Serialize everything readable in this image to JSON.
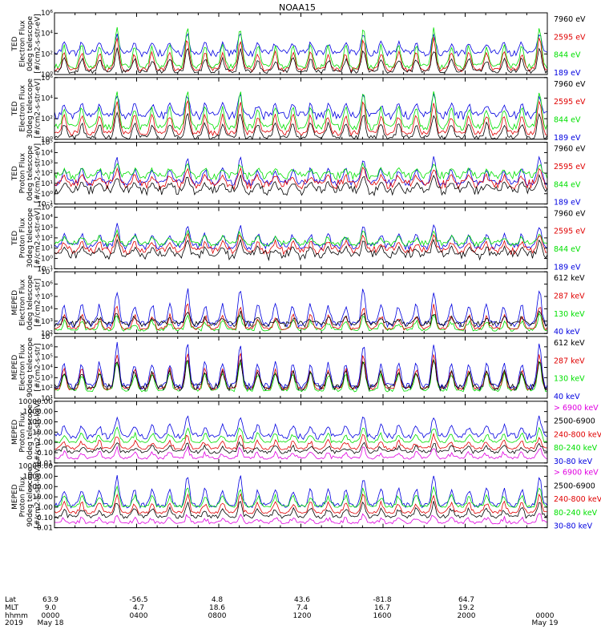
{
  "title": "NOAA15",
  "colors": {
    "black": "#000000",
    "red": "#e00000",
    "green": "#00e000",
    "blue": "#0000e0",
    "magenta": "#e000e0"
  },
  "chart_data": [
    {
      "type": "line",
      "panel_label": "TED Electron Flux 0deg telescope",
      "ylabel": [
        "TED",
        "Electron Flux",
        "0deg telescope",
        "[#/cm2-s-str-eV]"
      ],
      "yscale": "log",
      "ylim": [
        1,
        1000000
      ],
      "yticks": [
        "10⁶",
        "10⁴",
        "10²",
        "10⁰"
      ],
      "legend": [
        {
          "label": "7960 eV",
          "color": "black"
        },
        {
          "label": "2595 eV",
          "color": "red"
        },
        {
          "label": "844 eV",
          "color": "green"
        },
        {
          "label": "189 eV",
          "color": "blue"
        }
      ],
      "series": [
        {
          "color": "blue",
          "base": 120,
          "noise": 2.2,
          "peak": 8000
        },
        {
          "color": "green",
          "base": 6,
          "noise": 1.8,
          "peak": 30000
        },
        {
          "color": "red",
          "base": 3,
          "noise": 1.6,
          "peak": 3000
        },
        {
          "color": "black",
          "base": 2,
          "noise": 1.5,
          "peak": 300
        }
      ]
    },
    {
      "type": "line",
      "panel_label": "TED Electron Flux 30deg telescope",
      "ylabel": [
        "TED",
        "Electron Flux",
        "30deg telescope",
        "[#/cm2-s-str-eV]"
      ],
      "yscale": "log",
      "ylim": [
        1,
        1000000
      ],
      "yticks": [
        "10⁶",
        "10⁴",
        "10²",
        "10⁰"
      ],
      "legend": [
        {
          "label": "7960 eV",
          "color": "black"
        },
        {
          "label": "2595 eV",
          "color": "red"
        },
        {
          "label": "844 eV",
          "color": "green"
        },
        {
          "label": "189 eV",
          "color": "blue"
        }
      ],
      "series": [
        {
          "color": "blue",
          "base": 200,
          "noise": 2.5,
          "peak": 20000
        },
        {
          "color": "green",
          "base": 15,
          "noise": 2.0,
          "peak": 40000
        },
        {
          "color": "red",
          "base": 4,
          "noise": 1.8,
          "peak": 5000
        },
        {
          "color": "black",
          "base": 1.5,
          "noise": 1.6,
          "peak": 400
        }
      ]
    },
    {
      "type": "line",
      "panel_label": "TED Proton Flux 0deg telescope",
      "ylabel": [
        "TED",
        "Proton Flux",
        "0deg telescope",
        "[#/cm2-s-str-eV]"
      ],
      "yscale": "log",
      "ylim": [
        0.1,
        100000
      ],
      "yticks": [
        "10⁵",
        "10⁴",
        "10³",
        "10²",
        "10¹",
        "10⁰",
        "10⁻¹"
      ],
      "legend": [
        {
          "label": "7960 eV",
          "color": "black"
        },
        {
          "label": "2595 eV",
          "color": "red"
        },
        {
          "label": "844 eV",
          "color": "green"
        },
        {
          "label": "189 eV",
          "color": "blue"
        }
      ],
      "series": [
        {
          "color": "blue",
          "base": 12,
          "noise": 2.0,
          "peak": 3000
        },
        {
          "color": "green",
          "base": 60,
          "noise": 2.5,
          "peak": 800
        },
        {
          "color": "red",
          "base": 8,
          "noise": 3.0,
          "peak": 300
        },
        {
          "color": "black",
          "base": 2,
          "noise": 3.0,
          "peak": 60
        }
      ]
    },
    {
      "type": "line",
      "panel_label": "TED Proton Flux 30deg telescope",
      "ylabel": [
        "TED",
        "Proton Flux",
        "30deg telescope",
        "[#/cm2-s-str-eV]"
      ],
      "yscale": "log",
      "ylim": [
        0.1,
        100000
      ],
      "yticks": [
        "10⁵",
        "10⁴",
        "10³",
        "10²",
        "10¹",
        "10⁰",
        "10⁻¹"
      ],
      "legend": [
        {
          "label": "7960 eV",
          "color": "black"
        },
        {
          "label": "2595 eV",
          "color": "red"
        },
        {
          "label": "844 eV",
          "color": "green"
        },
        {
          "label": "189 eV",
          "color": "blue"
        }
      ],
      "series": [
        {
          "color": "blue",
          "base": 15,
          "noise": 2.0,
          "peak": 2000
        },
        {
          "color": "green",
          "base": 30,
          "noise": 2.0,
          "peak": 400
        },
        {
          "color": "red",
          "base": 6,
          "noise": 2.5,
          "peak": 200
        },
        {
          "color": "black",
          "base": 2,
          "noise": 3.0,
          "peak": 50
        }
      ]
    },
    {
      "type": "line",
      "panel_label": "MEPED Electron Flux 0deg telescope",
      "ylabel": [
        "MEPED",
        "Electron Flux",
        "0deg telescope",
        "[#/cm2-s-str]"
      ],
      "yscale": "log",
      "ylim": [
        100,
        10000000
      ],
      "yticks": [
        "10⁷",
        "10⁶",
        "10⁵",
        "10⁴",
        "10³",
        "10²"
      ],
      "legend": [
        {
          "label": "612 keV",
          "color": "black"
        },
        {
          "label": "287 keV",
          "color": "red"
        },
        {
          "label": "130 keV",
          "color": "green"
        },
        {
          "label": "40 keV",
          "color": "blue"
        }
      ],
      "series": [
        {
          "color": "green",
          "base": 200,
          "noise": 1.3,
          "peak": 3000
        },
        {
          "color": "red",
          "base": 250,
          "noise": 1.3,
          "peak": 20000
        },
        {
          "color": "blue",
          "base": 600,
          "noise": 1.8,
          "peak": 400000
        },
        {
          "color": "black",
          "base": 600,
          "noise": 1.7,
          "peak": 5000
        }
      ]
    },
    {
      "type": "line",
      "panel_label": "MEPED Electron Flux 90deg telescope",
      "ylabel": [
        "MEPED",
        "Electron Flux",
        "90deg telescope",
        "[#/cm2-s-str]"
      ],
      "yscale": "log",
      "ylim": [
        10,
        10000000
      ],
      "yticks": [
        "10⁷",
        "10⁶",
        "10⁵",
        "10⁴",
        "10³",
        "10²",
        "10¹"
      ],
      "legend": [
        {
          "label": "612 keV",
          "color": "black"
        },
        {
          "label": "287 keV",
          "color": "red"
        },
        {
          "label": "130 keV",
          "color": "green"
        },
        {
          "label": "40 keV",
          "color": "blue"
        }
      ],
      "series": [
        {
          "color": "green",
          "base": 60,
          "noise": 1.4,
          "peak": 50000
        },
        {
          "color": "red",
          "base": 90,
          "noise": 1.4,
          "peak": 200000
        },
        {
          "color": "blue",
          "base": 150,
          "noise": 2.0,
          "peak": 2000000
        },
        {
          "color": "black",
          "base": 120,
          "noise": 2.2,
          "peak": 60000
        }
      ]
    },
    {
      "type": "line",
      "panel_label": "MEPED Proton Flux 0deg telescope",
      "ylabel": [
        "MEPED",
        "Proton Flux",
        "0deg telescope",
        "[#/cm2-s-str-keV]"
      ],
      "yscale": "log",
      "ylim": [
        0.01,
        10000
      ],
      "yticks": [
        "10000.00",
        "1000.00",
        "100.00",
        "10.00",
        "1.00",
        "0.10",
        "0.01"
      ],
      "legend": [
        {
          "label": "> 6900 keV",
          "color": "magenta"
        },
        {
          "label": "2500-6900",
          "color": "black"
        },
        {
          "label": "240-800 keV",
          "color": "red"
        },
        {
          "label": "80-240 keV",
          "color": "green"
        },
        {
          "label": "30-80 keV",
          "color": "blue"
        }
      ],
      "series": [
        {
          "color": "blue",
          "base": 4,
          "noise": 2.0,
          "peak": 300
        },
        {
          "color": "green",
          "base": 1.1,
          "noise": 1.2,
          "peak": 30
        },
        {
          "color": "red",
          "base": 0.25,
          "noise": 1.3,
          "peak": 5
        },
        {
          "color": "black",
          "base": 0.12,
          "noise": 1.5,
          "peak": 1
        },
        {
          "color": "magenta",
          "base": 0.03,
          "noise": 1.3,
          "peak": 0.3
        }
      ]
    },
    {
      "type": "line",
      "panel_label": "MEPED Proton Flux 90deg telescope",
      "ylabel": [
        "MEPED",
        "Proton Flux",
        "90deg telescope",
        "[#/cm2-s-str-keV]"
      ],
      "yscale": "log",
      "ylim": [
        0.01,
        10000
      ],
      "yticks": [
        "10000.00",
        "1000.00",
        "100.00",
        "10.00",
        "1.00",
        "0.10",
        "0.01"
      ],
      "legend": [
        {
          "label": "> 6900 keV",
          "color": "magenta"
        },
        {
          "label": "2500-6900",
          "color": "black"
        },
        {
          "label": "240-800 keV",
          "color": "red"
        },
        {
          "label": "80-240 keV",
          "color": "green"
        },
        {
          "label": "30-80 keV",
          "color": "blue"
        }
      ],
      "series": [
        {
          "color": "blue",
          "base": 1.5,
          "noise": 1.8,
          "peak": 1000
        },
        {
          "color": "green",
          "base": 1.2,
          "noise": 1.3,
          "peak": 80
        },
        {
          "color": "red",
          "base": 0.3,
          "noise": 1.3,
          "peak": 15
        },
        {
          "color": "black",
          "base": 0.12,
          "noise": 1.5,
          "peak": 3
        },
        {
          "color": "magenta",
          "base": 0.03,
          "noise": 1.3,
          "peak": 0.2
        }
      ]
    }
  ],
  "x_axis": {
    "row_labels": [
      "Lat",
      "MLT",
      "hhmm",
      "2019"
    ],
    "columns": [
      {
        "values": [
          "63.9",
          "9.0",
          "0000",
          "May 18"
        ]
      },
      {
        "values": [
          "-56.5",
          "4.7",
          "0400",
          ""
        ]
      },
      {
        "values": [
          "4.8",
          "18.6",
          "0800",
          ""
        ]
      },
      {
        "values": [
          "43.6",
          "7.4",
          "1200",
          ""
        ]
      },
      {
        "values": [
          "-81.8",
          "16.7",
          "1600",
          ""
        ]
      },
      {
        "values": [
          "64.7",
          "19.2",
          "2000",
          ""
        ]
      },
      {
        "values": [
          "",
          "",
          "0000",
          "May 19"
        ]
      }
    ]
  },
  "passes": {
    "count": 28,
    "major": [
      3,
      7,
      10,
      17,
      21,
      27
    ]
  }
}
